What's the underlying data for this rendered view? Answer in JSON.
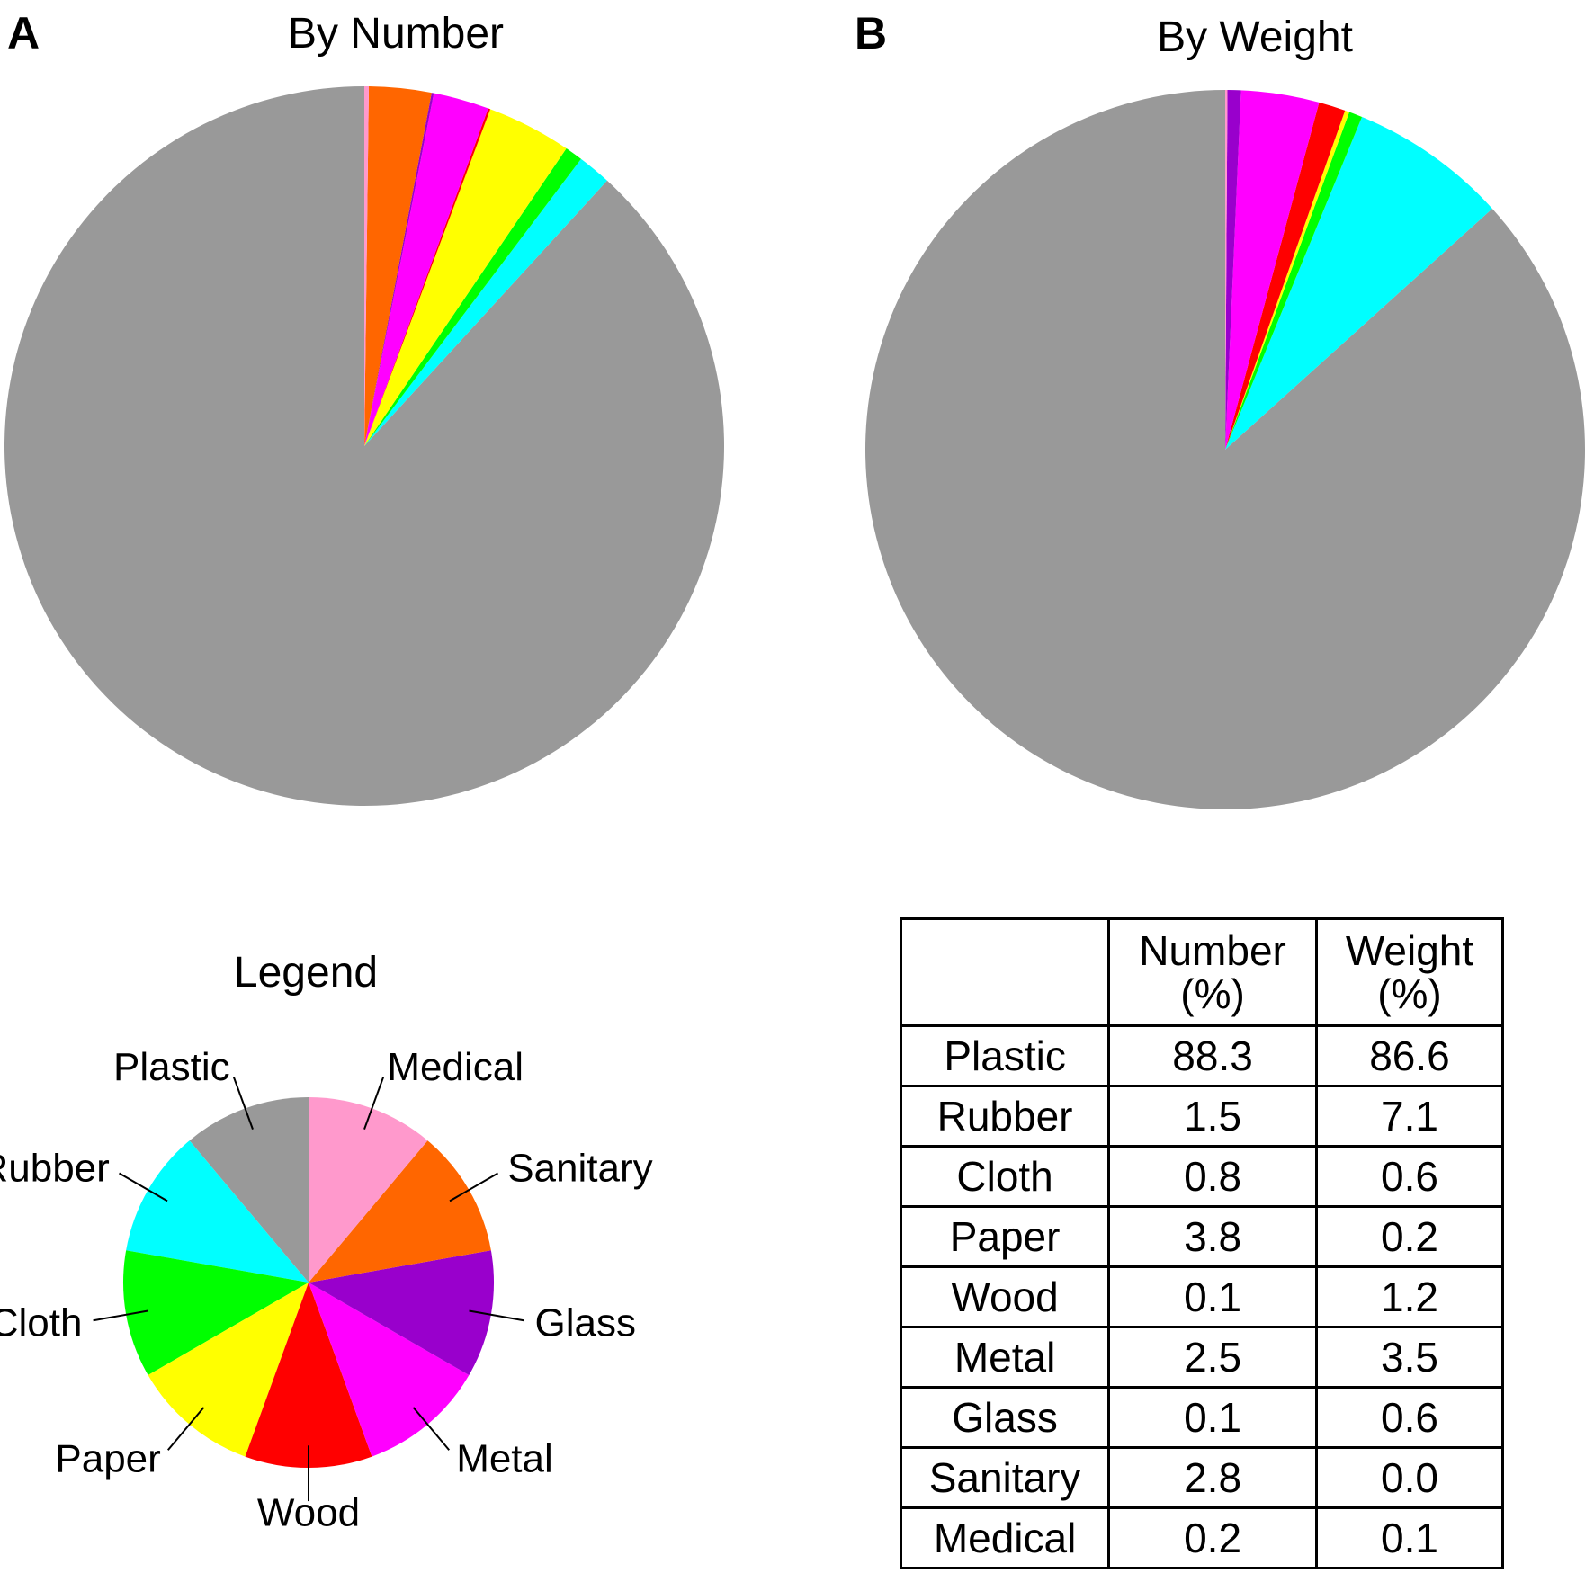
{
  "panels": {
    "a": {
      "letter": "A",
      "title": "By Number"
    },
    "b": {
      "letter": "B",
      "title": "By Weight"
    }
  },
  "legend": {
    "title": "Legend"
  },
  "table": {
    "headers": [
      "",
      "Number\n(%)",
      "Weight\n(%)"
    ],
    "header_number_line1": "Number",
    "header_number_line2": "(%)",
    "header_weight_line1": "Weight",
    "header_weight_line2": "(%)"
  },
  "colors": {
    "Plastic": "#999999",
    "Rubber": "#00FFFF",
    "Cloth": "#00FF00",
    "Paper": "#FFFF00",
    "Wood": "#FF0000",
    "Metal": "#FF00FF",
    "Glass": "#9900CC",
    "Sanitary": "#FF6600",
    "Medical": "#FF99CC"
  },
  "chart_data": [
    {
      "type": "pie",
      "title": "By Number",
      "categories": [
        "Plastic",
        "Rubber",
        "Cloth",
        "Paper",
        "Wood",
        "Metal",
        "Glass",
        "Sanitary",
        "Medical"
      ],
      "values": [
        88.3,
        1.5,
        0.8,
        3.8,
        0.1,
        2.5,
        0.1,
        2.8,
        0.2
      ]
    },
    {
      "type": "pie",
      "title": "By Weight",
      "categories": [
        "Plastic",
        "Rubber",
        "Cloth",
        "Paper",
        "Wood",
        "Metal",
        "Glass",
        "Sanitary",
        "Medical"
      ],
      "values": [
        86.6,
        7.1,
        0.6,
        0.2,
        1.2,
        3.5,
        0.6,
        0.0,
        0.1
      ]
    },
    {
      "type": "pie",
      "title": "Legend",
      "categories": [
        "Plastic",
        "Rubber",
        "Cloth",
        "Paper",
        "Wood",
        "Metal",
        "Glass",
        "Sanitary",
        "Medical"
      ],
      "values": [
        1,
        1,
        1,
        1,
        1,
        1,
        1,
        1,
        1
      ]
    },
    {
      "type": "table",
      "columns": [
        "",
        "Number (%)",
        "Weight (%)"
      ],
      "rows": [
        [
          "Plastic",
          "88.3",
          "86.6"
        ],
        [
          "Rubber",
          "1.5",
          "7.1"
        ],
        [
          "Cloth",
          "0.8",
          "0.6"
        ],
        [
          "Paper",
          "3.8",
          "0.2"
        ],
        [
          "Wood",
          "0.1",
          "1.2"
        ],
        [
          "Metal",
          "2.5",
          "3.5"
        ],
        [
          "Glass",
          "0.1",
          "0.6"
        ],
        [
          "Sanitary",
          "2.8",
          "0.0"
        ],
        [
          "Medical",
          "0.2",
          "0.1"
        ]
      ]
    }
  ]
}
